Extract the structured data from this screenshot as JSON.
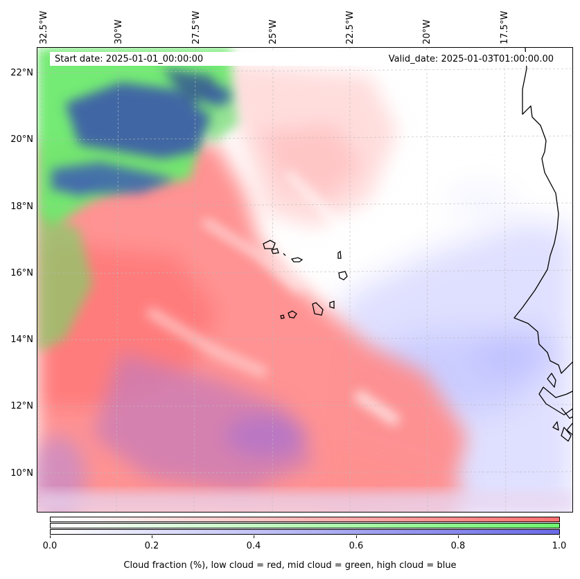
{
  "header": {
    "start_date": "Start date: 2025-01-01_00:00:00",
    "valid_date": "Valid_date: 2025-01-03T01:00:00.00"
  },
  "longitude_labels": [
    "32.5°W",
    "30°W",
    "27.5°W",
    "25°W",
    "22.5°W",
    "20°W",
    "17.5°W"
  ],
  "latitude_labels": [
    "22°N",
    "20°N",
    "18°N",
    "16°N",
    "14°N",
    "12°N",
    "10°N"
  ],
  "colorbar": {
    "ticks": [
      "0.0",
      "0.2",
      "0.4",
      "0.6",
      "0.8",
      "1.0"
    ],
    "caption": "Cloud fraction (%), low cloud = red, mid cloud = green, high cloud = blue",
    "colors": {
      "low": "#ff7777",
      "mid": "#77ff77",
      "high": "#7777ee"
    }
  },
  "map": {
    "colors": {
      "low_cloud": "#ff7f7f",
      "mid_cloud": "#6eea6e",
      "high_cloud": "#3a5aa8",
      "high_cloud_light": "#c8ccff",
      "coastline": "#000000",
      "gridline": "#bbbbbb"
    }
  }
}
